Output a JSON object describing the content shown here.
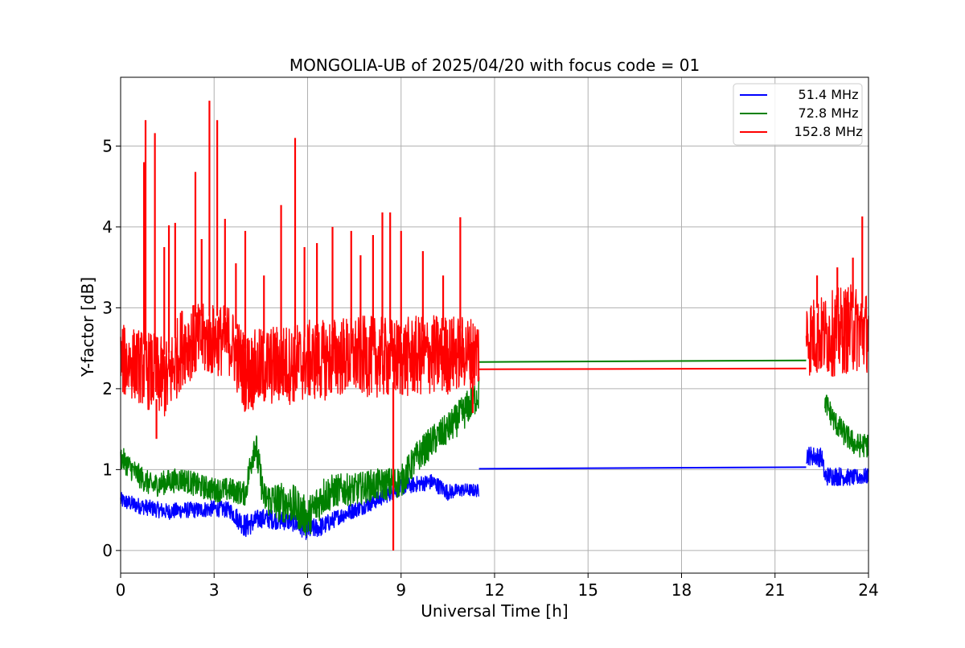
{
  "chart_data": {
    "type": "line",
    "title": "MONGOLIA-UB of 2025/04/20 with focus code = 01",
    "xlabel": "Universal Time [h]",
    "ylabel": "Y-factor [dB]",
    "xlim": [
      0,
      24
    ],
    "ylim": [
      -0.28,
      5.85
    ],
    "x_ticks": [
      "0",
      "3",
      "6",
      "9",
      "12",
      "15",
      "18",
      "21",
      "24"
    ],
    "y_ticks": [
      "0",
      "1",
      "2",
      "3",
      "4",
      "5"
    ],
    "grid": true,
    "legend_position": "top-right",
    "series": [
      {
        "name": "51.4 MHz",
        "color": "#0000ff",
        "segments": [
          {
            "x": [
              0,
              0.5,
              1,
              1.5,
              2,
              2.5,
              3,
              3.5,
              4,
              4.5,
              5,
              5.5,
              6,
              6.5,
              7,
              7.5,
              8,
              8.5,
              9,
              9.5,
              10,
              10.5,
              11,
              11.5
            ],
            "y": [
              0.62,
              0.56,
              0.52,
              0.48,
              0.5,
              0.5,
              0.52,
              0.5,
              0.3,
              0.4,
              0.38,
              0.36,
              0.25,
              0.3,
              0.42,
              0.5,
              0.58,
              0.68,
              0.78,
              0.82,
              0.85,
              0.72,
              0.75,
              0.74
            ],
            "noise": [
              0.1,
              0.1,
              0.1,
              0.1,
              0.1,
              0.1,
              0.1,
              0.1,
              0.15,
              0.12,
              0.12,
              0.12,
              0.13,
              0.12,
              0.1,
              0.1,
              0.1,
              0.1,
              0.1,
              0.1,
              0.1,
              0.1,
              0.08,
              0.08
            ]
          },
          {
            "x": [
              11.5,
              22.0
            ],
            "y": [
              1.01,
              1.03
            ],
            "noise": [
              0,
              0
            ]
          },
          {
            "x": [
              22,
              22.5,
              22.6,
              23,
              23.5,
              24
            ],
            "y": [
              1.18,
              1.15,
              0.92,
              0.92,
              0.9,
              0.92
            ],
            "noise": [
              0.12,
              0.12,
              0.12,
              0.12,
              0.1,
              0.1
            ]
          }
        ]
      },
      {
        "name": "72.8 MHz",
        "color": "#008000",
        "segments": [
          {
            "x": [
              0,
              0.5,
              1,
              1.5,
              2,
              2.5,
              3,
              3.5,
              4,
              4.3,
              4.6,
              5,
              5.5,
              6,
              6.5,
              7,
              7.5,
              8,
              8.5,
              9,
              9.5,
              10,
              10.5,
              11,
              11.5
            ],
            "y": [
              1.15,
              0.95,
              0.8,
              0.85,
              0.88,
              0.8,
              0.75,
              0.75,
              0.7,
              1.35,
              0.65,
              0.6,
              0.58,
              0.4,
              0.68,
              0.75,
              0.75,
              0.8,
              0.82,
              0.85,
              1.15,
              1.35,
              1.5,
              1.7,
              1.95
            ],
            "noise": [
              0.15,
              0.15,
              0.15,
              0.15,
              0.15,
              0.15,
              0.15,
              0.15,
              0.15,
              0.25,
              0.2,
              0.25,
              0.25,
              0.25,
              0.25,
              0.2,
              0.2,
              0.2,
              0.2,
              0.2,
              0.2,
              0.2,
              0.2,
              0.22,
              0.22
            ]
          },
          {
            "x": [
              11.5,
              22.0
            ],
            "y": [
              2.33,
              2.35
            ],
            "noise": [
              0,
              0
            ]
          },
          {
            "x": [
              22.6,
              22.9,
              23.2,
              23.6,
              24
            ],
            "y": [
              1.85,
              1.6,
              1.45,
              1.3,
              1.3
            ],
            "noise": [
              0.15,
              0.15,
              0.15,
              0.15,
              0.15
            ]
          }
        ]
      },
      {
        "name": "152.8 MHz",
        "color": "#ff0000",
        "segments": [
          {
            "x": [
              0,
              0.5,
              1,
              1.5,
              2,
              2.5,
              3,
              3.5,
              4,
              4.5,
              5,
              5.5,
              6,
              6.5,
              7,
              7.5,
              8,
              8.5,
              9,
              9.5,
              10,
              10.5,
              11,
              11.5
            ],
            "y": [
              2.35,
              2.3,
              2.2,
              2.1,
              2.55,
              2.6,
              2.6,
              2.6,
              2.2,
              2.25,
              2.3,
              2.3,
              2.35,
              2.35,
              2.4,
              2.4,
              2.4,
              2.38,
              2.38,
              2.4,
              2.42,
              2.42,
              2.45,
              2.45
            ],
            "noise": [
              0.45,
              0.45,
              0.5,
              0.5,
              0.5,
              0.45,
              0.45,
              0.45,
              0.5,
              0.5,
              0.5,
              0.5,
              0.5,
              0.5,
              0.5,
              0.5,
              0.5,
              0.5,
              0.5,
              0.5,
              0.5,
              0.5,
              0.45,
              0.45
            ]
          },
          {
            "x": [
              11.5,
              22.0
            ],
            "y": [
              2.24,
              2.25
            ],
            "noise": [
              0,
              0
            ]
          },
          {
            "x": [
              22,
              22.5,
              23,
              23.5,
              24
            ],
            "y": [
              2.65,
              2.65,
              2.7,
              2.75,
              2.7
            ],
            "noise": [
              0.5,
              0.5,
              0.55,
              0.55,
              0.5
            ]
          }
        ],
        "spikes": [
          {
            "x": 0.8,
            "y": 5.32
          },
          {
            "x": 0.75,
            "y": 4.8
          },
          {
            "x": 1.1,
            "y": 5.16
          },
          {
            "x": 1.4,
            "y": 3.75
          },
          {
            "x": 1.55,
            "y": 4.02
          },
          {
            "x": 1.75,
            "y": 4.05
          },
          {
            "x": 2.4,
            "y": 4.68
          },
          {
            "x": 2.6,
            "y": 3.85
          },
          {
            "x": 2.85,
            "y": 5.56
          },
          {
            "x": 3.1,
            "y": 5.32
          },
          {
            "x": 3.35,
            "y": 4.1
          },
          {
            "x": 3.7,
            "y": 3.55
          },
          {
            "x": 4.0,
            "y": 3.95
          },
          {
            "x": 4.6,
            "y": 3.4
          },
          {
            "x": 5.15,
            "y": 4.27
          },
          {
            "x": 5.6,
            "y": 5.1
          },
          {
            "x": 5.9,
            "y": 3.75
          },
          {
            "x": 6.3,
            "y": 3.8
          },
          {
            "x": 6.8,
            "y": 4.0
          },
          {
            "x": 7.4,
            "y": 3.95
          },
          {
            "x": 7.7,
            "y": 3.65
          },
          {
            "x": 8.1,
            "y": 3.9
          },
          {
            "x": 8.4,
            "y": 4.18
          },
          {
            "x": 8.65,
            "y": 4.18
          },
          {
            "x": 9.0,
            "y": 3.95
          },
          {
            "x": 9.7,
            "y": 3.7
          },
          {
            "x": 10.35,
            "y": 3.4
          },
          {
            "x": 10.9,
            "y": 4.12
          },
          {
            "x": 22.35,
            "y": 3.4
          },
          {
            "x": 23.0,
            "y": 3.5
          },
          {
            "x": 23.5,
            "y": 3.62
          },
          {
            "x": 23.8,
            "y": 4.13
          }
        ],
        "dips": [
          {
            "x": 8.75,
            "y": 0.0
          },
          {
            "x": 1.15,
            "y": 1.38
          },
          {
            "x": 11.3,
            "y": 1.7
          }
        ]
      }
    ]
  }
}
